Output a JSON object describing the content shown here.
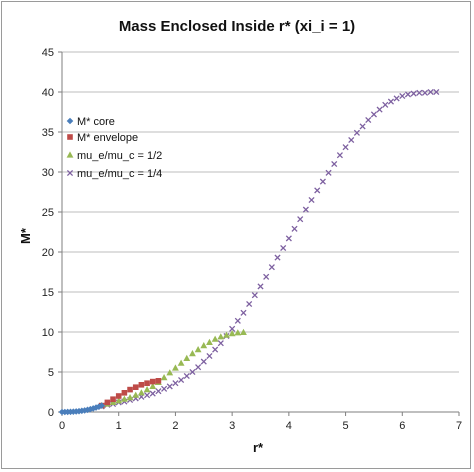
{
  "chart_data": {
    "type": "scatter",
    "title": "Mass Enclosed Inside r* (xi_i = 1)",
    "xlabel": "r*",
    "ylabel": "M*",
    "xlim": [
      0,
      7
    ],
    "ylim": [
      0,
      45
    ],
    "xticks": [
      0,
      1,
      2,
      3,
      4,
      5,
      6,
      7
    ],
    "yticks": [
      0,
      5,
      10,
      15,
      20,
      25,
      30,
      35,
      40,
      45
    ],
    "grid": "horizontal",
    "legend_position": "left-middle",
    "series": [
      {
        "name": "M* core",
        "color": "#4a7ebb",
        "marker": "diamond",
        "x": [
          0.0,
          0.05,
          0.1,
          0.15,
          0.2,
          0.25,
          0.3,
          0.35,
          0.4,
          0.45,
          0.5,
          0.55,
          0.6,
          0.65,
          0.7
        ],
        "y": [
          0.0,
          0.0,
          0.01,
          0.02,
          0.04,
          0.07,
          0.1,
          0.15,
          0.2,
          0.27,
          0.35,
          0.44,
          0.55,
          0.67,
          0.8
        ]
      },
      {
        "name": "M* envelope",
        "color": "#be4b48",
        "marker": "square",
        "x": [
          0.7,
          0.8,
          0.9,
          1.0,
          1.1,
          1.2,
          1.3,
          1.4,
          1.5,
          1.6,
          1.7
        ],
        "y": [
          0.8,
          1.2,
          1.6,
          2.0,
          2.4,
          2.8,
          3.1,
          3.4,
          3.6,
          3.8,
          3.9
        ]
      },
      {
        "name": "mu_e/mu_c = 1/2",
        "color": "#98b954",
        "marker": "triangle",
        "x": [
          0.7,
          0.8,
          0.9,
          1.0,
          1.1,
          1.2,
          1.3,
          1.4,
          1.5,
          1.6,
          1.7,
          1.8,
          1.9,
          2.0,
          2.1,
          2.2,
          2.3,
          2.4,
          2.5,
          2.6,
          2.7,
          2.8,
          2.9,
          3.0,
          3.1,
          3.2
        ],
        "y": [
          0.8,
          1.0,
          1.2,
          1.4,
          1.6,
          1.8,
          2.1,
          2.4,
          2.8,
          3.2,
          3.7,
          4.3,
          4.9,
          5.5,
          6.1,
          6.7,
          7.3,
          7.8,
          8.3,
          8.7,
          9.1,
          9.4,
          9.6,
          9.8,
          9.9,
          9.95
        ]
      },
      {
        "name": "mu_e/mu_c = 1/4",
        "color": "#7d60a0",
        "marker": "x",
        "x": [
          0.7,
          0.8,
          0.9,
          1.0,
          1.1,
          1.2,
          1.3,
          1.4,
          1.5,
          1.6,
          1.7,
          1.8,
          1.9,
          2.0,
          2.1,
          2.2,
          2.3,
          2.4,
          2.5,
          2.6,
          2.7,
          2.8,
          2.9,
          3.0,
          3.1,
          3.2,
          3.3,
          3.4,
          3.5,
          3.6,
          3.7,
          3.8,
          3.9,
          4.0,
          4.1,
          4.2,
          4.3,
          4.4,
          4.5,
          4.6,
          4.7,
          4.8,
          4.9,
          5.0,
          5.1,
          5.2,
          5.3,
          5.4,
          5.5,
          5.6,
          5.7,
          5.8,
          5.9,
          6.0,
          6.1,
          6.2,
          6.3,
          6.4,
          6.5,
          6.6
        ],
        "y": [
          0.7,
          0.9,
          1.0,
          1.2,
          1.3,
          1.5,
          1.7,
          1.9,
          2.1,
          2.3,
          2.6,
          2.9,
          3.2,
          3.6,
          4.0,
          4.5,
          5.0,
          5.6,
          6.3,
          7.0,
          7.8,
          8.6,
          9.5,
          10.4,
          11.4,
          12.4,
          13.5,
          14.6,
          15.7,
          16.9,
          18.1,
          19.3,
          20.5,
          21.7,
          22.9,
          24.1,
          25.3,
          26.5,
          27.7,
          28.8,
          29.9,
          31.0,
          32.1,
          33.1,
          34.0,
          34.9,
          35.7,
          36.5,
          37.2,
          37.8,
          38.4,
          38.8,
          39.2,
          39.5,
          39.7,
          39.8,
          39.9,
          39.9,
          40.0,
          40.0
        ]
      }
    ]
  }
}
